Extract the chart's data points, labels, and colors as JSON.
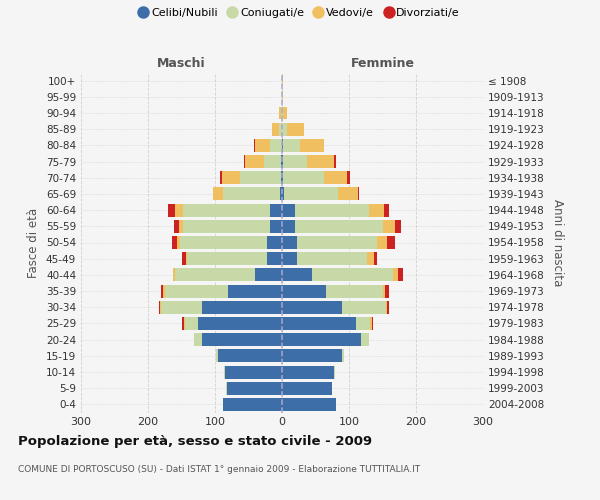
{
  "age_groups": [
    "0-4",
    "5-9",
    "10-14",
    "15-19",
    "20-24",
    "25-29",
    "30-34",
    "35-39",
    "40-44",
    "45-49",
    "50-54",
    "55-59",
    "60-64",
    "65-69",
    "70-74",
    "75-79",
    "80-84",
    "85-89",
    "90-94",
    "95-99",
    "100+"
  ],
  "birth_years": [
    "2004-2008",
    "1999-2003",
    "1994-1998",
    "1989-1993",
    "1984-1988",
    "1979-1983",
    "1974-1978",
    "1969-1973",
    "1964-1968",
    "1959-1963",
    "1954-1958",
    "1949-1953",
    "1944-1948",
    "1939-1943",
    "1934-1938",
    "1929-1933",
    "1924-1928",
    "1919-1923",
    "1914-1918",
    "1909-1913",
    "≤ 1908"
  ],
  "male_celibe": [
    88,
    82,
    85,
    95,
    120,
    125,
    120,
    80,
    40,
    22,
    22,
    18,
    18,
    3,
    2,
    1,
    0,
    0,
    0,
    0,
    0
  ],
  "male_coniugato": [
    0,
    1,
    1,
    3,
    12,
    20,
    60,
    95,
    120,
    120,
    130,
    130,
    130,
    85,
    60,
    26,
    18,
    5,
    2,
    0,
    0
  ],
  "male_vedovo": [
    0,
    0,
    0,
    0,
    0,
    2,
    2,
    2,
    2,
    2,
    4,
    5,
    12,
    15,
    28,
    28,
    22,
    10,
    2,
    0,
    0
  ],
  "male_divorziato": [
    0,
    0,
    0,
    0,
    0,
    2,
    2,
    4,
    0,
    5,
    8,
    8,
    10,
    0,
    2,
    2,
    2,
    0,
    0,
    0,
    0
  ],
  "female_celibe": [
    80,
    75,
    78,
    90,
    118,
    110,
    90,
    65,
    45,
    22,
    22,
    20,
    20,
    3,
    2,
    2,
    2,
    0,
    0,
    0,
    0
  ],
  "female_coniugata": [
    0,
    0,
    1,
    3,
    12,
    22,
    65,
    85,
    120,
    105,
    120,
    130,
    110,
    80,
    60,
    35,
    25,
    8,
    2,
    0,
    0
  ],
  "female_vedova": [
    0,
    0,
    0,
    0,
    0,
    2,
    2,
    4,
    8,
    10,
    15,
    18,
    22,
    30,
    35,
    40,
    35,
    25,
    5,
    2,
    1
  ],
  "female_divorziata": [
    0,
    0,
    0,
    0,
    0,
    2,
    3,
    5,
    8,
    5,
    12,
    10,
    8,
    2,
    5,
    4,
    0,
    0,
    0,
    0,
    0
  ],
  "colors": {
    "celibe": "#3d6ea8",
    "coniugato": "#c8d9a8",
    "vedovo": "#f0c060",
    "divorziato": "#cc2222"
  },
  "legend_labels": [
    "Celibi/Nubili",
    "Coniugati/e",
    "Vedovi/e",
    "Divorziati/e"
  ],
  "label_maschi": "Maschi",
  "label_femmine": "Femmine",
  "ylabel_left": "Fasce di età",
  "ylabel_right": "Anni di nascita",
  "title": "Popolazione per età, sesso e stato civile - 2009",
  "subtitle": "COMUNE DI PORTOSCUSO (SU) - Dati ISTAT 1° gennaio 2009 - Elaborazione TUTTITALIA.IT",
  "xlim": 300,
  "bg_color": "#f5f5f5",
  "grid_color": "#cccccc"
}
